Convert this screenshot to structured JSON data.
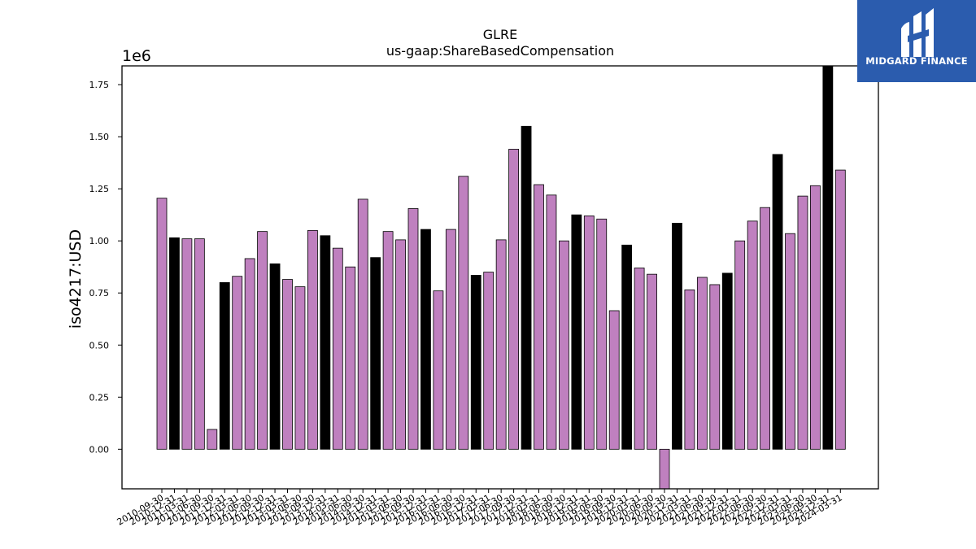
{
  "chart_data": {
    "type": "bar",
    "title": "GLRE",
    "subtitle": "us-gaap:ShareBasedCompensation",
    "xlabel": "",
    "ylabel": "iso4217:USD",
    "y_multiplier_label": "1e6",
    "ylim": [
      -0.19,
      1.84
    ],
    "yticks": [
      0.0,
      0.25,
      0.5,
      0.75,
      1.0,
      1.25,
      1.5,
      1.75
    ],
    "ytick_labels": [
      "0.00",
      "0.25",
      "0.50",
      "0.75",
      "1.00",
      "1.25",
      "1.50",
      "1.75"
    ],
    "grid": false,
    "colors": {
      "regular": "#bf80bf",
      "annual": "#000000",
      "edge": "#000000"
    },
    "categories": [
      "2010-09-30",
      "2010-12-31",
      "2011-03-31",
      "2011-06-30",
      "2011-09-30",
      "2011-12-31",
      "2012-03-31",
      "2012-06-30",
      "2012-09-30",
      "2012-12-31",
      "2013-03-31",
      "2013-06-30",
      "2013-09-30",
      "2013-12-31",
      "2014-03-31",
      "2014-06-30",
      "2014-09-30",
      "2014-12-31",
      "2015-03-31",
      "2015-06-30",
      "2015-09-30",
      "2015-12-31",
      "2016-03-31",
      "2016-06-30",
      "2016-09-30",
      "2016-12-31",
      "2017-03-31",
      "2017-06-30",
      "2017-09-30",
      "2017-12-31",
      "2018-03-31",
      "2018-06-30",
      "2018-09-30",
      "2018-12-31",
      "2019-03-31",
      "2019-06-30",
      "2019-09-30",
      "2019-12-31",
      "2020-03-31",
      "2020-06-30",
      "2020-09-30",
      "2020-12-31",
      "2021-03-31",
      "2021-06-30",
      "2021-09-30",
      "2021-12-31",
      "2022-03-31",
      "2022-06-30",
      "2022-09-30",
      "2022-12-31",
      "2023-03-31",
      "2023-06-30",
      "2023-09-30",
      "2023-12-31",
      "2024-03-31"
    ],
    "values": [
      1.205,
      1.015,
      1.01,
      1.01,
      0.095,
      0.8,
      0.83,
      0.915,
      1.045,
      0.89,
      0.815,
      0.78,
      1.05,
      1.025,
      0.965,
      0.875,
      1.2,
      0.92,
      1.045,
      1.005,
      1.155,
      1.055,
      0.76,
      1.055,
      1.31,
      0.835,
      0.85,
      1.005,
      1.44,
      1.55,
      1.27,
      1.22,
      1.0,
      1.125,
      1.12,
      1.105,
      0.665,
      0.98,
      0.87,
      0.84,
      -0.19,
      1.085,
      0.765,
      0.825,
      0.79,
      0.845,
      1.0,
      1.095,
      1.16,
      1.415,
      1.035,
      1.215,
      1.265,
      1.84,
      1.34
    ],
    "annual": [
      false,
      true,
      false,
      false,
      false,
      true,
      false,
      false,
      false,
      true,
      false,
      false,
      false,
      true,
      false,
      false,
      false,
      true,
      false,
      false,
      false,
      true,
      false,
      false,
      false,
      true,
      false,
      false,
      false,
      true,
      false,
      false,
      false,
      true,
      false,
      false,
      false,
      true,
      false,
      false,
      false,
      true,
      false,
      false,
      false,
      true,
      false,
      false,
      false,
      true,
      false,
      false,
      false,
      true,
      false
    ]
  },
  "logo": {
    "text": "MIDGARD FINANCE",
    "icon": "midgard-finance-logo-icon"
  }
}
